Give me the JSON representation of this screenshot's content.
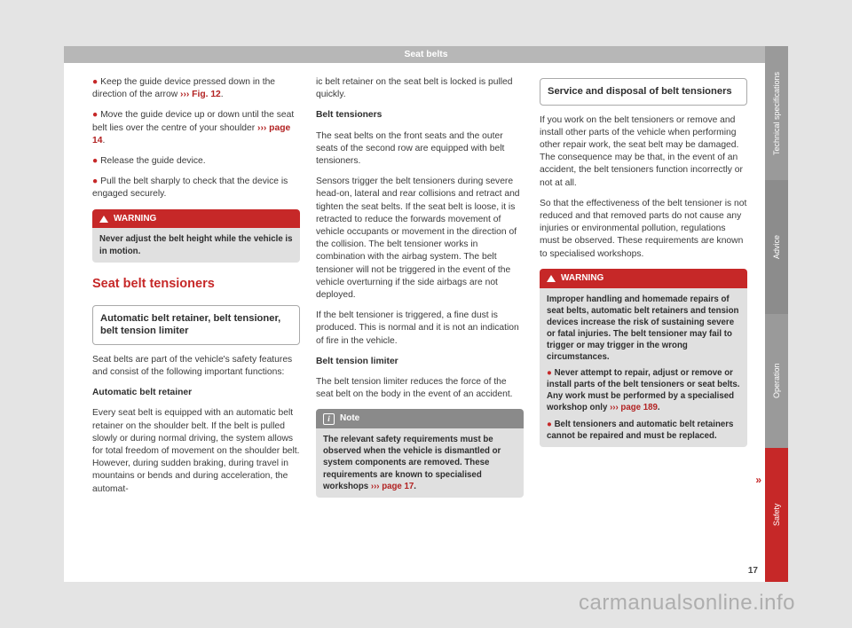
{
  "header": {
    "title": "Seat belts"
  },
  "col1": {
    "b1a": "Keep the guide device pressed down in the direction of the arrow ",
    "b1ref": "››› Fig. 12",
    "b1b": ".",
    "b2a": "Move the guide device up or down until the seat belt lies over the centre of your shoulder ",
    "b2ref": "››› page 14",
    "b2b": ".",
    "b3": "Release the guide device.",
    "b4": "Pull the belt sharply to check that the device is engaged securely.",
    "warn_label": "WARNING",
    "warn_body": "Never adjust the belt height while the vehicle is in motion.",
    "section": "Seat belt tensioners",
    "subhead": "Automatic belt retainer, belt tensioner, belt tension limiter",
    "p1": "Seat belts are part of the vehicle's safety features and consist of the following important functions:",
    "s1": "Automatic belt retainer",
    "p2": "Every seat belt is equipped with an automatic belt retainer on the shoulder belt. If the belt is pulled slowly or during normal driving, the system allows for total freedom of movement on the shoulder belt. However, during sudden braking, during travel in mountains or bends and during acceleration, the automat-"
  },
  "col2": {
    "p0": "ic belt retainer on the seat belt is locked is pulled quickly.",
    "s1": "Belt tensioners",
    "p1": "The seat belts on the front seats and the outer seats of the second row are equipped with belt tensioners.",
    "p2": "Sensors trigger the belt tensioners during severe head-on, lateral and rear collisions and retract and tighten the seat belts. If the seat belt is loose, it is retracted to reduce the forwards movement of vehicle occupants or movement in the direction of the collision. The belt tensioner works in combination with the airbag system. The belt tensioner will not be triggered in the event of the vehicle overturning if the side airbags are not deployed.",
    "p3": "If the belt tensioner is triggered, a fine dust is produced. This is normal and it is not an indication of fire in the vehicle.",
    "s2": "Belt tension limiter",
    "p4": "The belt tension limiter reduces the force of the seat belt on the body in the event of an accident.",
    "note_label": "Note",
    "note_body_a": "The relevant safety requirements must be observed when the vehicle is dismantled or system components are removed. These requirements are known to specialised workshops ",
    "note_body_ref": "››› page 17",
    "note_body_b": "."
  },
  "col3": {
    "subhead": "Service and disposal of belt tensioners",
    "p1": "If you work on the belt tensioners or remove and install other parts of the vehicle when performing other repair work, the seat belt may be damaged. The consequence may be that, in the event of an accident, the belt tensioners function incorrectly or not at all.",
    "p2": "So that the effectiveness of the belt tensioner is not reduced and that removed parts do not cause any injuries or environmental pollution, regulations must be observed. These requirements are known to specialised workshops.",
    "warn_label": "WARNING",
    "w1": "Improper handling and homemade repairs of seat belts, automatic belt retainers and tension devices increase the risk of sustaining severe or fatal injuries. The belt tensioner may fail to trigger or may trigger in the wrong circumstances.",
    "w2a": "Never attempt to repair, adjust or remove or install parts of the belt tensioners or seat belts. Any work must be performed by a specialised workshop only ",
    "w2ref": "››› page 189",
    "w2b": ".",
    "w3": "Belt tensioners and automatic belt retainers cannot be repaired and must be replaced."
  },
  "tabs": {
    "t1": "Technical specifications",
    "t2": "Advice",
    "t3": "Operation",
    "t4": "Safety"
  },
  "pagenum": "17",
  "watermark": "carmanualsonline.info",
  "cont": "»"
}
